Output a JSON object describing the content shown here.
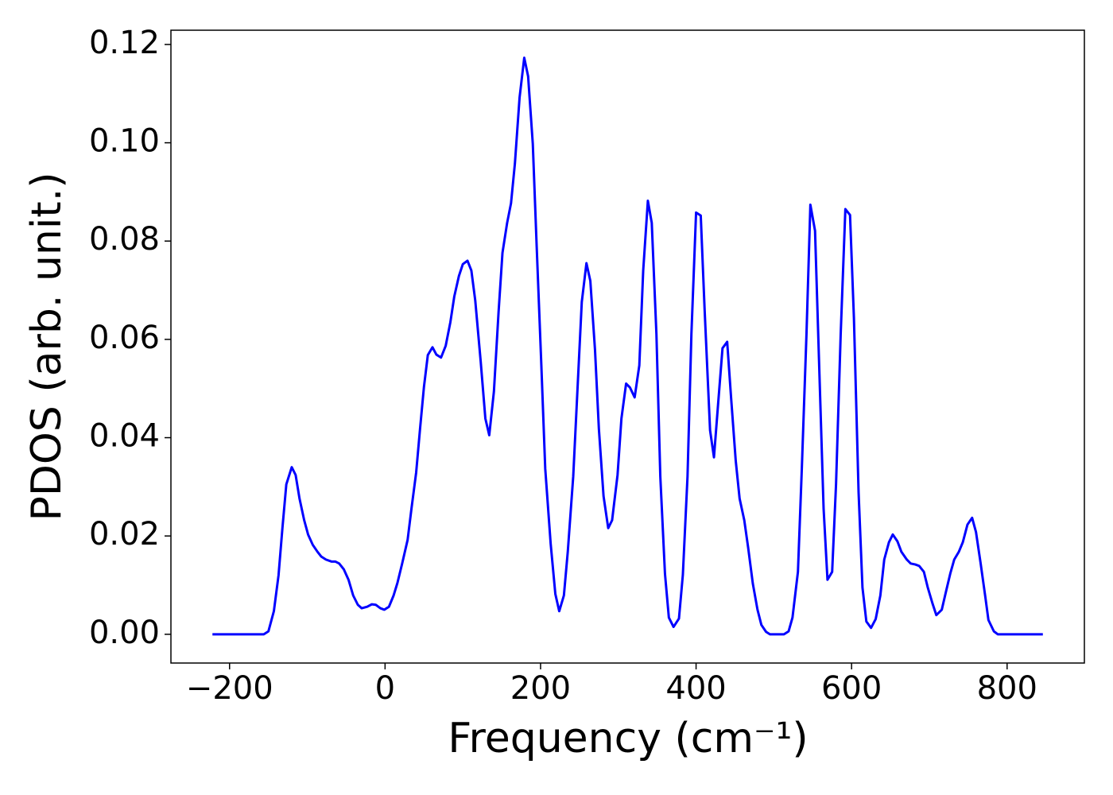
{
  "chart_data": {
    "type": "line",
    "xlabel": "Frequency (cm⁻¹)",
    "ylabel": "PDOS (arb. unit.)",
    "xlim": [
      -275.4,
      899.4
    ],
    "ylim": [
      -0.00585,
      0.1229
    ],
    "xticks": [
      {
        "value": -200,
        "label": "−200"
      },
      0,
      200,
      400,
      600,
      800
    ],
    "yticks": [
      {
        "value": 0,
        "label": "0.00"
      },
      {
        "value": 0.02,
        "label": "0.02"
      },
      {
        "value": 0.04,
        "label": "0.04"
      },
      {
        "value": 0.06,
        "label": "0.06"
      },
      {
        "value": 0.08,
        "label": "0.08"
      },
      {
        "value": 0.1,
        "label": "0.10"
      },
      {
        "value": 0.12,
        "label": "0.12"
      }
    ],
    "grid": false,
    "series": [
      {
        "color": "#0000ff",
        "x": [
          -222,
          -156,
          -150,
          -143,
          -137,
          -132,
          -127,
          -120,
          -115,
          -110,
          -104,
          -99,
          -93,
          -87,
          -82,
          -76,
          -69,
          -64,
          -59,
          -53,
          -47,
          -41,
          -35,
          -30,
          -23,
          -17,
          -12,
          -6,
          -1,
          5,
          11,
          16,
          22,
          29,
          34,
          40,
          45,
          50,
          55,
          61,
          66,
          72,
          78,
          84,
          89,
          95,
          100,
          106,
          111,
          116,
          123,
          129,
          134,
          140,
          146,
          151,
          157,
          162,
          167,
          173,
          179,
          184,
          190,
          195,
          201,
          206,
          213,
          219,
          224,
          230,
          235,
          242,
          248,
          253,
          259,
          264,
          270,
          275,
          281,
          287,
          292,
          299,
          304,
          310,
          315,
          321,
          327,
          332,
          338,
          343,
          349,
          354,
          360,
          365,
          371,
          378,
          383,
          389,
          394,
          400,
          406,
          411,
          418,
          423,
          429,
          434,
          440,
          445,
          451,
          456,
          462,
          467,
          473,
          479,
          484,
          490,
          495,
          513,
          519,
          524,
          531,
          536,
          542,
          547,
          553,
          558,
          564,
          569,
          575,
          580,
          586,
          592,
          598,
          603,
          609,
          614,
          619,
          625,
          631,
          637,
          642,
          648,
          653,
          659,
          664,
          671,
          676,
          682,
          687,
          693,
          698,
          704,
          709,
          716,
          721,
          727,
          732,
          738,
          743,
          749,
          755,
          760,
          766,
          772,
          776,
          783,
          788,
          846
        ],
        "values": [
          0,
          0,
          0.0006,
          0.0047,
          0.012,
          0.0216,
          0.0305,
          0.034,
          0.0324,
          0.0276,
          0.0232,
          0.0203,
          0.0182,
          0.0168,
          0.0158,
          0.0152,
          0.0148,
          0.0148,
          0.0144,
          0.0132,
          0.0111,
          0.0079,
          0.006,
          0.0053,
          0.0056,
          0.0061,
          0.006,
          0.0053,
          0.005,
          0.0056,
          0.0079,
          0.0105,
          0.0144,
          0.0192,
          0.0256,
          0.0329,
          0.0418,
          0.0503,
          0.0568,
          0.0584,
          0.0569,
          0.0563,
          0.0587,
          0.0635,
          0.0687,
          0.0729,
          0.0753,
          0.076,
          0.074,
          0.0679,
          0.0555,
          0.0439,
          0.0405,
          0.0494,
          0.0656,
          0.0776,
          0.0837,
          0.0877,
          0.0958,
          0.1092,
          0.1173,
          0.1135,
          0.0998,
          0.0789,
          0.0547,
          0.0337,
          0.0184,
          0.0082,
          0.0047,
          0.0079,
          0.0168,
          0.0321,
          0.0515,
          0.0676,
          0.0755,
          0.0719,
          0.0579,
          0.0418,
          0.0281,
          0.0216,
          0.0232,
          0.0324,
          0.0439,
          0.051,
          0.0502,
          0.0482,
          0.0547,
          0.074,
          0.0882,
          0.0837,
          0.0611,
          0.0321,
          0.0123,
          0.0034,
          0.0015,
          0.0032,
          0.0121,
          0.0321,
          0.0611,
          0.0858,
          0.0852,
          0.066,
          0.0415,
          0.036,
          0.0482,
          0.0582,
          0.0595,
          0.0482,
          0.0353,
          0.0276,
          0.0232,
          0.0176,
          0.0103,
          0.005,
          0.0019,
          0.0005,
          0,
          0,
          0.0006,
          0.0034,
          0.0127,
          0.0337,
          0.0611,
          0.0874,
          0.0821,
          0.0563,
          0.0256,
          0.0111,
          0.0127,
          0.0305,
          0.0611,
          0.0865,
          0.0853,
          0.0644,
          0.0289,
          0.0095,
          0.0026,
          0.0013,
          0.0031,
          0.0079,
          0.0152,
          0.0187,
          0.0203,
          0.0189,
          0.0168,
          0.0152,
          0.0144,
          0.0142,
          0.0139,
          0.0127,
          0.0095,
          0.0063,
          0.0039,
          0.005,
          0.0084,
          0.0124,
          0.0152,
          0.0168,
          0.0187,
          0.0223,
          0.0237,
          0.0208,
          0.0144,
          0.0076,
          0.0029,
          0.0006,
          0,
          0
        ]
      }
    ]
  }
}
